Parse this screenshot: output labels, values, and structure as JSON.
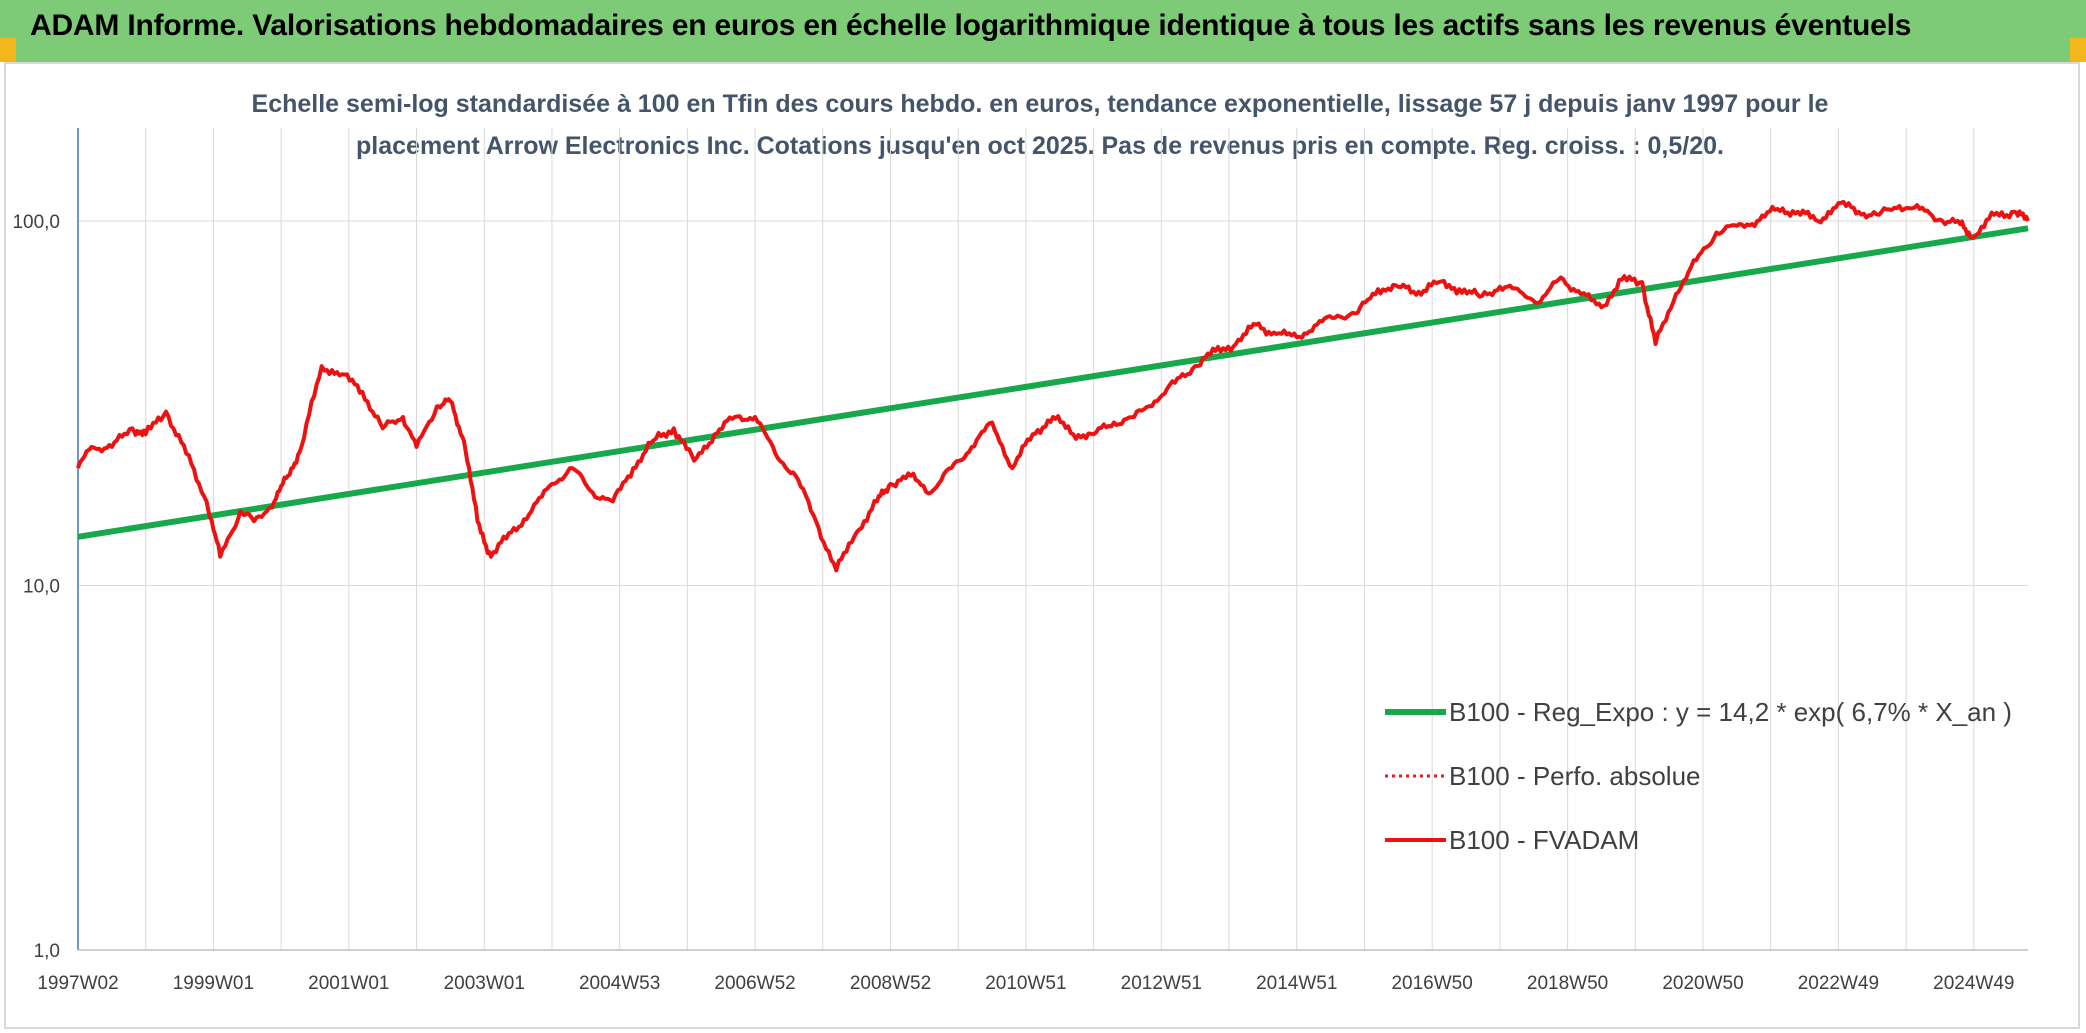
{
  "header": {
    "title": "ADAM Informe. Valorisations hebdomadaires en euros en échelle logarithmique identique à tous les actifs sans les revenus éventuels"
  },
  "colors": {
    "banner": "#7dcb77",
    "accent_corner": "#f3b71b",
    "regression": "#18a84c",
    "fvadam": "#ee1111",
    "perfo": "#e81f1f"
  },
  "chart_data": {
    "type": "line",
    "title_lines": [
      "Echelle semi-log standardisée à 100 en Tfin des cours hebdo. en euros, tendance exponentielle, lissage 57 j depuis janv 1997 pour le",
      "placement Arrow Electronics Inc. Cotations jusqu'en oct 2025. Pas de revenus pris en compte. Reg. croiss. : 0,5/20."
    ],
    "y_scale": "log",
    "ylim": [
      1,
      180
    ],
    "y_ticks": [
      {
        "value": 1,
        "label": "1,0"
      },
      {
        "value": 10,
        "label": "10,0"
      },
      {
        "value": 100,
        "label": "100,0"
      }
    ],
    "xlim": [
      1997.0,
      2025.8
    ],
    "x_ticks": [
      {
        "value": 1997.0,
        "label": "1997W02"
      },
      {
        "value": 1999.0,
        "label": "1999W01"
      },
      {
        "value": 2001.0,
        "label": "2001W01"
      },
      {
        "value": 2003.0,
        "label": "2003W01"
      },
      {
        "value": 2005.0,
        "label": "2004W53"
      },
      {
        "value": 2007.0,
        "label": "2006W52"
      },
      {
        "value": 2009.0,
        "label": "2008W52"
      },
      {
        "value": 2011.0,
        "label": "2010W51"
      },
      {
        "value": 2013.0,
        "label": "2012W51"
      },
      {
        "value": 2015.0,
        "label": "2014W51"
      },
      {
        "value": 2017.0,
        "label": "2016W50"
      },
      {
        "value": 2019.0,
        "label": "2018W50"
      },
      {
        "value": 2021.0,
        "label": "2020W50"
      },
      {
        "value": 2023.0,
        "label": "2022W49"
      },
      {
        "value": 2025.0,
        "label": "2024W49"
      }
    ],
    "grid": "vertical lines every year, horizontal lines at 10 and 100",
    "legend_position": "bottom-right",
    "series": [
      {
        "name": "B100 - Reg_Expo : y = 14,2 * exp( 6,7% *  X_an )",
        "style": "solid-thick",
        "x": [
          1997.0,
          2025.8
        ],
        "values": [
          13.6,
          95.5
        ]
      },
      {
        "name": "B100 - Perfo. absolue",
        "style": "dotted",
        "x": [],
        "values": []
      },
      {
        "name": "B100 - FVADAM",
        "style": "solid",
        "x": [
          1997.0,
          1997.2,
          1997.5,
          1997.8,
          1998.0,
          1998.3,
          1998.6,
          1998.9,
          1999.1,
          1999.4,
          1999.6,
          1999.9,
          2000.1,
          2000.3,
          2000.6,
          2000.9,
          2001.2,
          2001.5,
          2001.8,
          2002.0,
          2002.3,
          2002.5,
          2002.7,
          2002.9,
          2003.1,
          2003.4,
          2003.7,
          2004.0,
          2004.3,
          2004.6,
          2004.9,
          2005.2,
          2005.5,
          2005.8,
          2006.1,
          2006.4,
          2006.7,
          2007.0,
          2007.3,
          2007.6,
          2007.9,
          2008.2,
          2008.5,
          2008.8,
          2009.0,
          2009.3,
          2009.6,
          2009.9,
          2010.2,
          2010.5,
          2010.8,
          2011.1,
          2011.4,
          2011.7,
          2012.0,
          2012.3,
          2012.6,
          2012.9,
          2013.2,
          2013.5,
          2013.8,
          2014.1,
          2014.4,
          2014.7,
          2015.0,
          2015.3,
          2015.6,
          2015.9,
          2016.2,
          2016.5,
          2016.8,
          2017.1,
          2017.4,
          2017.7,
          2018.0,
          2018.3,
          2018.6,
          2018.9,
          2019.2,
          2019.5,
          2019.8,
          2020.1,
          2020.3,
          2020.6,
          2020.9,
          2021.2,
          2021.5,
          2021.8,
          2022.1,
          2022.4,
          2022.7,
          2023.0,
          2023.3,
          2023.6,
          2023.9,
          2024.2,
          2024.5,
          2024.8,
          2025.0,
          2025.3,
          2025.6,
          2025.8
        ],
        "values": [
          21,
          24,
          24,
          27,
          26,
          30,
          23,
          17,
          12,
          16,
          15,
          17,
          20,
          24,
          40,
          38,
          34,
          27,
          29,
          24,
          31,
          32,
          25,
          15,
          12,
          14,
          16,
          19,
          21,
          18,
          17,
          21,
          25,
          27,
          22,
          26,
          29,
          29,
          23,
          20,
          15,
          11,
          14,
          17,
          19,
          20,
          18,
          21,
          24,
          28,
          21,
          26,
          29,
          26,
          26,
          28,
          29,
          32,
          36,
          40,
          44,
          46,
          52,
          49,
          48,
          52,
          55,
          56,
          65,
          66,
          64,
          68,
          65,
          62,
          66,
          64,
          60,
          70,
          63,
          58,
          69,
          68,
          46,
          63,
          78,
          93,
          97,
          100,
          108,
          106,
          100,
          112,
          106,
          104,
          110,
          108,
          101,
          98,
          90,
          104,
          106,
          100
        ]
      }
    ]
  }
}
